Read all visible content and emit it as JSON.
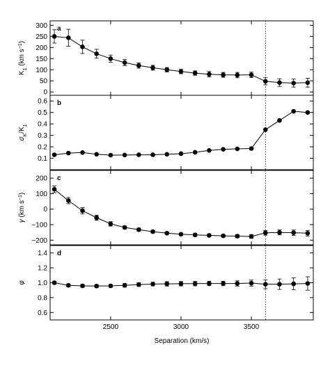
{
  "chart_data": {
    "type": "line",
    "x": [
      2100,
      2200,
      2300,
      2400,
      2500,
      2600,
      2700,
      2800,
      2900,
      3000,
      3100,
      3200,
      3300,
      3400,
      3500,
      3600,
      3700,
      3800,
      3900
    ],
    "xlim": [
      2070,
      3940
    ],
    "xlabel": "Separation (km/s)",
    "xticks": [
      2500,
      3000,
      3500
    ],
    "vline_x": 3600,
    "panels": [
      {
        "label": "a",
        "ylabel_main": "K",
        "ylabel_sub": "1",
        "ylabel_unit": " (km s",
        "ylabel_sup": "−1",
        "ylabel_close": ")",
        "ylim": [
          -15,
          320
        ],
        "yticks": [
          0,
          50,
          100,
          150,
          200,
          250,
          300
        ],
        "values": [
          250,
          244,
          203,
          172,
          150,
          132,
          119,
          109,
          100,
          92,
          85,
          80,
          77,
          76,
          77,
          48,
          42,
          40,
          42
        ],
        "errors": [
          30,
          38,
          30,
          20,
          16,
          14,
          12,
          11,
          10,
          10,
          10,
          12,
          11,
          12,
          12,
          16,
          17,
          18,
          20
        ]
      },
      {
        "label": "b",
        "ylabel_main": "σ",
        "ylabel_sub": "K",
        "ylabel_slash": "/K",
        "ylabel_sub2": "1",
        "ylim": [
          0.0,
          0.65
        ],
        "yticks": [
          0.1,
          0.2,
          0.3,
          0.4,
          0.5,
          0.6
        ],
        "values": [
          0.13,
          0.145,
          0.15,
          0.135,
          0.127,
          0.128,
          0.13,
          0.13,
          0.135,
          0.14,
          0.152,
          0.168,
          0.178,
          0.182,
          0.185,
          0.35,
          0.43,
          0.51,
          0.5
        ],
        "errors": []
      },
      {
        "label": "c",
        "ylabel_main": "γ",
        "ylabel_unit": " (km s",
        "ylabel_sup": "−1",
        "ylabel_close": ")",
        "ylim": [
          -230,
          250
        ],
        "yticks": [
          -200,
          -100,
          0,
          100,
          200
        ],
        "values": [
          128,
          55,
          -10,
          -55,
          -95,
          -118,
          -132,
          -145,
          -155,
          -162,
          -166,
          -169,
          -172,
          -174,
          -176,
          -153,
          -150,
          -152,
          -155
        ],
        "errors": [
          22,
          20,
          20,
          16,
          14,
          10,
          10,
          9,
          8,
          8,
          9,
          9,
          9,
          10,
          12,
          15,
          16,
          17,
          18
        ]
      },
      {
        "label": "d",
        "ylabel_main": "φ",
        "ylim": [
          0.5,
          1.5
        ],
        "yticks": [
          0.6,
          0.8,
          1.0,
          1.2,
          1.4
        ],
        "values": [
          1.0,
          0.965,
          0.958,
          0.955,
          0.958,
          0.965,
          0.975,
          0.982,
          0.985,
          0.987,
          0.988,
          0.99,
          0.99,
          0.99,
          0.995,
          0.98,
          0.98,
          0.985,
          0.99
        ],
        "errors": [
          0.02,
          0.02,
          0.02,
          0.02,
          0.02,
          0.025,
          0.025,
          0.025,
          0.03,
          0.03,
          0.03,
          0.03,
          0.03,
          0.035,
          0.04,
          0.06,
          0.07,
          0.08,
          0.09
        ]
      }
    ]
  }
}
